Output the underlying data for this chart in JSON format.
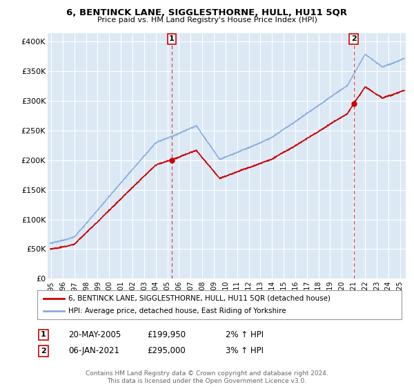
{
  "title": "6, BENTINCK LANE, SIGGLESTHORNE, HULL, HU11 5QR",
  "subtitle": "Price paid vs. HM Land Registry's House Price Index (HPI)",
  "ylabel_ticks": [
    "£0",
    "£50K",
    "£100K",
    "£150K",
    "£200K",
    "£250K",
    "£300K",
    "£350K",
    "£400K"
  ],
  "ytick_values": [
    0,
    50000,
    100000,
    150000,
    200000,
    250000,
    300000,
    350000,
    400000
  ],
  "ylim": [
    0,
    415000
  ],
  "xlim_start": 1994.7,
  "xlim_end": 2025.5,
  "background_color": "#ffffff",
  "plot_bg_color": "#dce9f5",
  "grid_color": "#ffffff",
  "sale1_date": 2005.38,
  "sale1_price": 199950,
  "sale1_label": "1",
  "sale1_date_str": "20-MAY-2005",
  "sale1_price_str": "£199,950",
  "sale1_pct_str": "2% ↑ HPI",
  "sale2_date": 2021.02,
  "sale2_price": 295000,
  "sale2_label": "2",
  "sale2_date_str": "06-JAN-2021",
  "sale2_price_str": "£295,000",
  "sale2_pct_str": "3% ↑ HPI",
  "legend_line1": "6, BENTINCK LANE, SIGGLESTHORNE, HULL, HU11 5QR (detached house)",
  "legend_line2": "HPI: Average price, detached house, East Riding of Yorkshire",
  "footer": "Contains HM Land Registry data © Crown copyright and database right 2024.\nThis data is licensed under the Open Government Licence v3.0.",
  "price_color": "#cc0000",
  "hpi_color": "#88aadd",
  "vline_color": "#dd4444",
  "marker_color": "#cc0000",
  "xtick_years": [
    1995,
    1996,
    1997,
    1998,
    1999,
    2000,
    2001,
    2002,
    2003,
    2004,
    2005,
    2006,
    2007,
    2008,
    2009,
    2010,
    2011,
    2012,
    2013,
    2014,
    2015,
    2016,
    2017,
    2018,
    2019,
    2020,
    2021,
    2022,
    2023,
    2024,
    2025
  ]
}
